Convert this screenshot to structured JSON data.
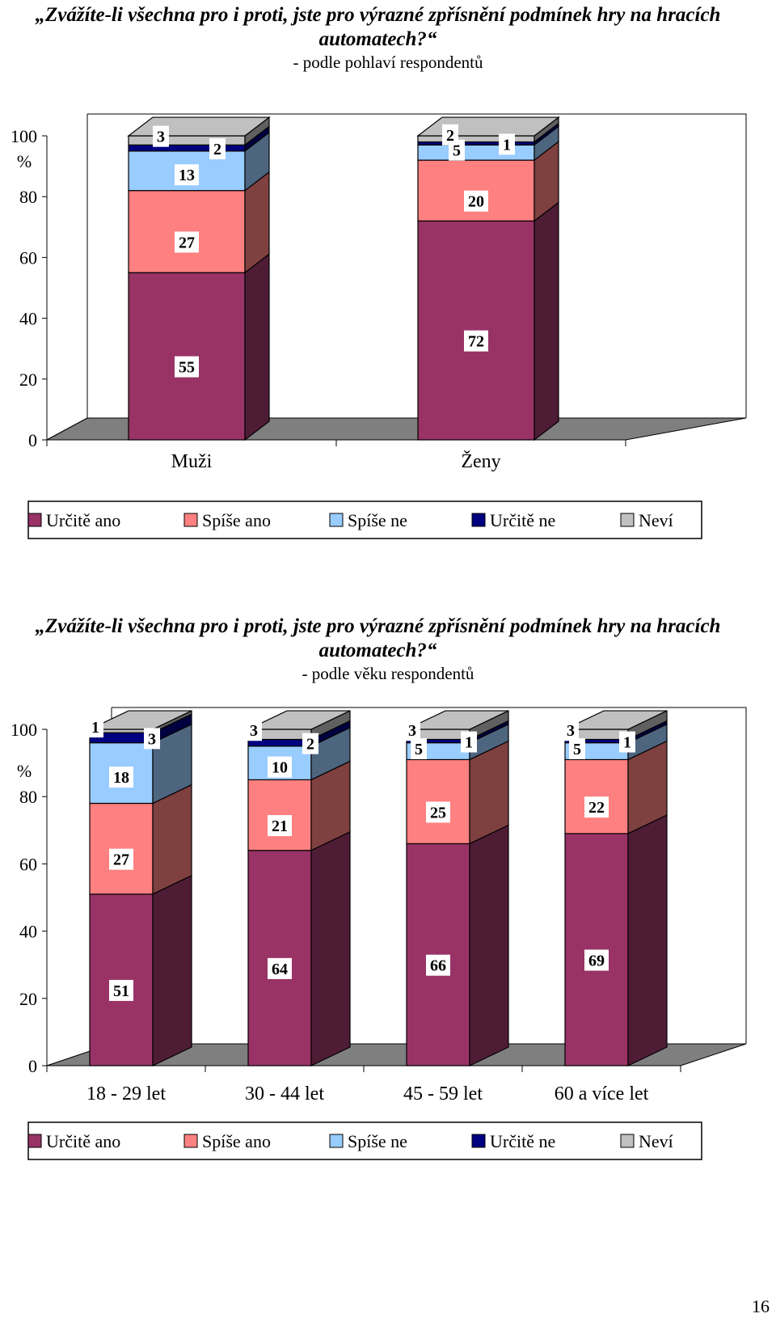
{
  "page_number": "16",
  "legend_labels": [
    "Určitě ano",
    "Spíše ano",
    "Spíše ne",
    "Určitě ne",
    "Neví"
  ],
  "colors": {
    "front": [
      "#993366",
      "#ff8080",
      "#99ccff",
      "#000080",
      "#c0c0c0"
    ],
    "side": [
      "#4f1c36",
      "#7f4040",
      "#4e6580",
      "#000040",
      "#606060"
    ],
    "floor": "#7f7f7f",
    "label_box": "#ffffff"
  },
  "charts": [
    {
      "title": "„Zvážíte-li všechna pro i proti, jste pro výrazné zpřísnění podmínek hry na hracích automatech?“",
      "subtitle": "- podle pohlaví respondentů",
      "y_ticks": [
        "0",
        "20",
        "40",
        "60",
        "80",
        "100"
      ],
      "y_unit": "%"
    },
    {
      "title": "„Zvážíte-li všechna pro i proti, jste pro výrazné zpřísnění podmínek hry na hracích automatech?“",
      "subtitle": "- podle věku respondentů",
      "y_ticks": [
        "0",
        "20",
        "40",
        "60",
        "80",
        "100"
      ],
      "y_unit": "%"
    }
  ],
  "chart_data": [
    {
      "type": "bar",
      "stacked": true,
      "three_d": true,
      "title": "„Zvážíte-li všechna pro i proti, jste pro výrazné zpřísnění podmínek hry na hracích automatech?“",
      "subtitle": "- podle pohlaví respondentů",
      "categories": [
        "Muži",
        "Ženy"
      ],
      "ylim": [
        0,
        100
      ],
      "ylabel": "%",
      "legend_position": "bottom",
      "series": [
        {
          "name": "Určitě ano",
          "values": [
            55,
            72
          ]
        },
        {
          "name": "Spíše ano",
          "values": [
            27,
            20
          ]
        },
        {
          "name": "Spíše ne",
          "values": [
            13,
            5
          ]
        },
        {
          "name": "Určitě ne",
          "values": [
            2,
            1
          ]
        },
        {
          "name": "Neví",
          "values": [
            3,
            2
          ]
        }
      ]
    },
    {
      "type": "bar",
      "stacked": true,
      "three_d": true,
      "title": "„Zvážíte-li všechna pro i proti, jste pro výrazné zpřísnění podmínek hry na hracích automatech?“",
      "subtitle": "- podle věku respondentů",
      "categories": [
        "18 - 29 let",
        "30 - 44 let",
        "45 - 59 let",
        "60 a více let"
      ],
      "ylim": [
        0,
        100
      ],
      "ylabel": "%",
      "legend_position": "bottom",
      "series": [
        {
          "name": "Určitě ano",
          "values": [
            51,
            64,
            66,
            69
          ]
        },
        {
          "name": "Spíše ano",
          "values": [
            27,
            21,
            25,
            22
          ]
        },
        {
          "name": "Spíše ne",
          "values": [
            18,
            10,
            5,
            5
          ]
        },
        {
          "name": "Určitě ne",
          "values": [
            3,
            2,
            1,
            1
          ]
        },
        {
          "name": "Neví",
          "values": [
            1,
            3,
            3,
            3
          ]
        }
      ]
    }
  ]
}
